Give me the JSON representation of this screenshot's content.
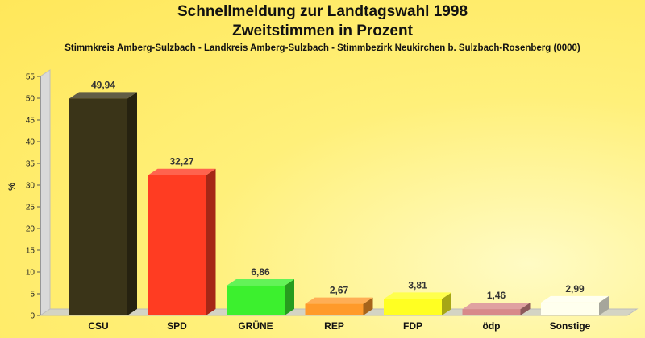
{
  "header": {
    "title_line1": "Schnellmeldung zur Landtagswahl 1998",
    "title_line2": "Zweitstimmen in Prozent",
    "subtitle": "Stimmkreis Amberg-Sulzbach - Landkreis Amberg-Sulzbach - Stimmbezirk Neukirchen b. Sulzbach-Rosenberg (0000)"
  },
  "chart_data": {
    "type": "bar",
    "title": "Schnellmeldung zur Landtagswahl 1998",
    "subtitle": "Zweitstimmen in Prozent",
    "ylabel": "%",
    "xlabel": "",
    "ylim": [
      0,
      55
    ],
    "yticks": [
      0,
      5,
      10,
      15,
      20,
      25,
      30,
      35,
      40,
      45,
      50,
      55
    ],
    "grid": false,
    "categories": [
      "CSU",
      "SPD",
      "GRÜNE",
      "REP",
      "FDP",
      "ödp",
      "Sonstige"
    ],
    "values": [
      49.94,
      32.27,
      6.86,
      2.67,
      3.81,
      1.46,
      2.99
    ],
    "value_labels": [
      "49,94",
      "32,27",
      "6,86",
      "2,67",
      "3,81",
      "1,46",
      "2,99"
    ],
    "colors": [
      "#3a3418",
      "#ff3c22",
      "#3cf02e",
      "#ff9a2a",
      "#ffff22",
      "#d8898a",
      "#ffffee"
    ]
  }
}
